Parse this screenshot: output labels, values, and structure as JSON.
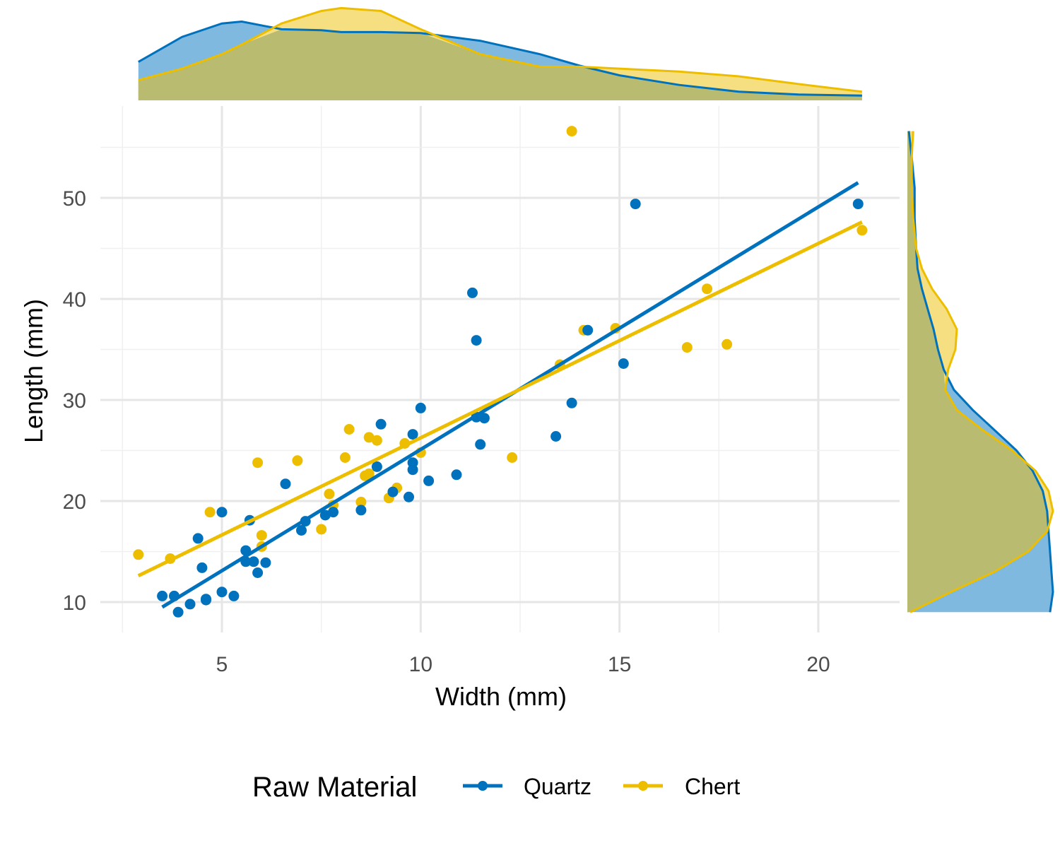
{
  "chart_data": {
    "type": "scatter",
    "xlabel": "Width (mm)",
    "ylabel": "Length (mm)",
    "xlim": [
      2.3,
      21.4
    ],
    "ylim": [
      7.0,
      58.0
    ],
    "x_ticks": [
      5,
      10,
      15,
      20
    ],
    "y_ticks": [
      10,
      20,
      30,
      40,
      50
    ],
    "grid": true,
    "legend": {
      "title": "Raw Material",
      "position": "bottom"
    },
    "series": [
      {
        "name": "Quartz",
        "color": "#0072BD",
        "points": [
          [
            3.5,
            10.6
          ],
          [
            3.8,
            10.6
          ],
          [
            3.9,
            9.0
          ],
          [
            4.2,
            9.8
          ],
          [
            4.4,
            16.3
          ],
          [
            4.5,
            13.4
          ],
          [
            4.6,
            10.2
          ],
          [
            4.6,
            10.3
          ],
          [
            5.0,
            18.9
          ],
          [
            5.0,
            11.0
          ],
          [
            5.3,
            10.6
          ],
          [
            5.6,
            15.1
          ],
          [
            5.6,
            14.0
          ],
          [
            5.7,
            18.1
          ],
          [
            5.8,
            14.0
          ],
          [
            5.9,
            12.9
          ],
          [
            6.1,
            13.9
          ],
          [
            6.6,
            21.7
          ],
          [
            7.0,
            17.1
          ],
          [
            7.1,
            18.0
          ],
          [
            7.6,
            18.6
          ],
          [
            7.8,
            18.9
          ],
          [
            8.5,
            19.1
          ],
          [
            8.9,
            23.4
          ],
          [
            9.0,
            27.6
          ],
          [
            9.3,
            20.9
          ],
          [
            9.7,
            20.4
          ],
          [
            9.8,
            26.6
          ],
          [
            9.8,
            23.1
          ],
          [
            9.8,
            23.8
          ],
          [
            10.0,
            29.2
          ],
          [
            10.2,
            22.0
          ],
          [
            10.9,
            22.6
          ],
          [
            11.3,
            40.6
          ],
          [
            11.4,
            35.9
          ],
          [
            11.4,
            28.3
          ],
          [
            11.5,
            25.6
          ],
          [
            11.6,
            28.2
          ],
          [
            13.4,
            26.4
          ],
          [
            13.8,
            29.7
          ],
          [
            14.2,
            36.9
          ],
          [
            15.1,
            33.6
          ],
          [
            15.4,
            49.4
          ],
          [
            21.0,
            49.4
          ]
        ],
        "trend": {
          "x": [
            3.5,
            21.0
          ],
          "y": [
            9.5,
            51.5
          ]
        }
      },
      {
        "name": "Chert",
        "color": "#EDBE00",
        "points": [
          [
            2.9,
            14.7
          ],
          [
            3.7,
            14.3
          ],
          [
            4.7,
            18.9
          ],
          [
            5.9,
            23.8
          ],
          [
            6.0,
            16.6
          ],
          [
            6.0,
            15.5
          ],
          [
            6.9,
            24.0
          ],
          [
            7.5,
            17.2
          ],
          [
            7.7,
            20.7
          ],
          [
            7.8,
            19.6
          ],
          [
            8.1,
            24.3
          ],
          [
            8.2,
            27.1
          ],
          [
            8.5,
            19.9
          ],
          [
            8.6,
            22.5
          ],
          [
            8.7,
            22.7
          ],
          [
            8.7,
            26.3
          ],
          [
            8.9,
            26.0
          ],
          [
            9.2,
            20.3
          ],
          [
            9.4,
            21.3
          ],
          [
            9.6,
            25.7
          ],
          [
            10.0,
            24.8
          ],
          [
            12.3,
            24.3
          ],
          [
            13.5,
            33.5
          ],
          [
            13.8,
            56.6
          ],
          [
            14.1,
            36.9
          ],
          [
            14.9,
            37.1
          ],
          [
            16.7,
            35.2
          ],
          [
            17.2,
            41.0
          ],
          [
            17.7,
            35.5
          ],
          [
            21.1,
            46.8
          ]
        ],
        "trend": {
          "x": [
            2.9,
            21.1
          ],
          "y": [
            12.6,
            47.6
          ]
        }
      }
    ],
    "marginal_x_density": {
      "x": [
        2.9,
        4.0,
        5.0,
        5.5,
        6.5,
        7.5,
        8.0,
        9.0,
        10.0,
        11.5,
        13.0,
        14.0,
        15.0,
        16.5,
        18.0,
        19.5,
        21.1
      ],
      "Quartz": [
        0.4,
        0.66,
        0.8,
        0.82,
        0.74,
        0.73,
        0.71,
        0.71,
        0.7,
        0.62,
        0.48,
        0.36,
        0.26,
        0.16,
        0.09,
        0.06,
        0.05
      ],
      "Chert": [
        0.21,
        0.33,
        0.48,
        0.58,
        0.8,
        0.93,
        0.96,
        0.93,
        0.74,
        0.48,
        0.35,
        0.35,
        0.33,
        0.3,
        0.25,
        0.17,
        0.09
      ]
    },
    "marginal_y_density": {
      "y": [
        9.0,
        11.0,
        13.0,
        15.0,
        17.0,
        19.0,
        21.0,
        23.0,
        25.0,
        27.0,
        29.0,
        31.0,
        33.0,
        35.0,
        37.0,
        39.0,
        41.0,
        43.0,
        45.0,
        48.0,
        51.0,
        54.0,
        56.6
      ],
      "Quartz": [
        0.98,
        1.0,
        0.99,
        0.98,
        0.97,
        0.96,
        0.93,
        0.86,
        0.75,
        0.6,
        0.45,
        0.32,
        0.25,
        0.21,
        0.18,
        0.14,
        0.1,
        0.07,
        0.06,
        0.05,
        0.05,
        0.03,
        0.01
      ],
      "Chert": [
        0.02,
        0.3,
        0.6,
        0.83,
        0.96,
        1.0,
        0.97,
        0.88,
        0.72,
        0.52,
        0.34,
        0.26,
        0.28,
        0.33,
        0.34,
        0.27,
        0.17,
        0.1,
        0.06,
        0.04,
        0.03,
        0.03,
        0.04
      ]
    }
  }
}
